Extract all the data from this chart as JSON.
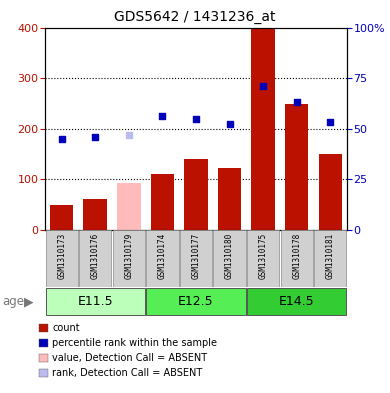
{
  "title": "GDS5642 / 1431236_at",
  "samples": [
    "GSM1310173",
    "GSM1310176",
    "GSM1310179",
    "GSM1310174",
    "GSM1310177",
    "GSM1310180",
    "GSM1310175",
    "GSM1310178",
    "GSM1310181"
  ],
  "groups": [
    {
      "label": "E11.5",
      "indices": [
        0,
        1,
        2
      ],
      "color": "#bbffbb"
    },
    {
      "label": "E12.5",
      "indices": [
        3,
        4,
        5
      ],
      "color": "#55ee55"
    },
    {
      "label": "E14.5",
      "indices": [
        6,
        7,
        8
      ],
      "color": "#33cc33"
    }
  ],
  "count_values": [
    50,
    62,
    93,
    110,
    140,
    123,
    398,
    248,
    150
  ],
  "count_absent": [
    false,
    false,
    true,
    false,
    false,
    false,
    false,
    false,
    false
  ],
  "rank_values": [
    45,
    46,
    47,
    56.5,
    55,
    52.5,
    71,
    63,
    53.5
  ],
  "rank_absent": [
    false,
    false,
    true,
    false,
    false,
    false,
    false,
    false,
    false
  ],
  "count_color": "#bb1100",
  "count_absent_color": "#ffbbbb",
  "rank_color": "#0000bb",
  "rank_absent_color": "#bbbbee",
  "ylim_left": [
    0,
    400
  ],
  "ylim_right": [
    0,
    100
  ],
  "yticks_left": [
    0,
    100,
    200,
    300,
    400
  ],
  "yticks_right": [
    0,
    25,
    50,
    75,
    100
  ],
  "ytick_labels_right": [
    "0",
    "25",
    "50",
    "75",
    "100%"
  ],
  "age_label": "age",
  "legend": [
    {
      "label": "count",
      "color": "#bb1100"
    },
    {
      "label": "percentile rank within the sample",
      "color": "#0000bb"
    },
    {
      "label": "value, Detection Call = ABSENT",
      "color": "#ffbbbb"
    },
    {
      "label": "rank, Detection Call = ABSENT",
      "color": "#bbbbee"
    }
  ]
}
